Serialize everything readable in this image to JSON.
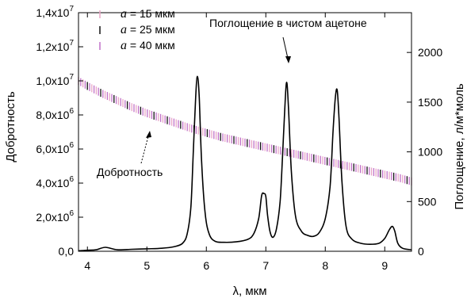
{
  "chart_data": {
    "type": "line",
    "xlabel": "λ, мкм",
    "ylabel_left": "Добротность",
    "ylabel_right": "Поглощение, л/м*моль",
    "xlim": [
      3.85,
      9.45
    ],
    "ylim_left": [
      0,
      14000000
    ],
    "ylim_right": [
      0,
      2400
    ],
    "x_ticks": [
      4,
      5,
      6,
      7,
      8,
      9
    ],
    "x_tick_labels": [
      "4",
      "5",
      "6",
      "7",
      "8",
      "9"
    ],
    "y_left_ticks": [
      0,
      2000000,
      4000000,
      6000000,
      8000000,
      10000000,
      12000000,
      14000000
    ],
    "y_left_tick_labels": [
      {
        "mantissa": "0,0",
        "exp": ""
      },
      {
        "mantissa": "2,0x10",
        "exp": "6"
      },
      {
        "mantissa": "4,0x10",
        "exp": "6"
      },
      {
        "mantissa": "6,0x10",
        "exp": "6"
      },
      {
        "mantissa": "8,0x10",
        "exp": "6"
      },
      {
        "mantissa": "1,0x10",
        "exp": "7"
      },
      {
        "mantissa": "1,2x10",
        "exp": "7"
      },
      {
        "mantissa": "1,4x10",
        "exp": "7"
      }
    ],
    "y_right_ticks": [
      0,
      500,
      1000,
      1500,
      2000
    ],
    "y_right_tick_labels": [
      "0",
      "500",
      "1000",
      "1500",
      "2000"
    ],
    "legend": {
      "placement": "top-left",
      "items": [
        {
          "symbol": "a",
          "text": " = 15 мкм",
          "color": "#e8a7c6"
        },
        {
          "symbol": "a",
          "text": " = 25 мкм",
          "color": "#111111"
        },
        {
          "symbol": "a",
          "text": " = 40 мкм",
          "color": "#c070c8"
        }
      ]
    },
    "quality_series": {
      "name": "Добротность",
      "axis": "left",
      "x": [
        3.85,
        4.0,
        4.25,
        4.5,
        4.75,
        5.0,
        5.25,
        5.5,
        5.75,
        6.0,
        6.25,
        6.5,
        6.75,
        7.0,
        7.25,
        7.5,
        7.75,
        8.0,
        8.25,
        8.5,
        8.75,
        9.0,
        9.25,
        9.45
      ],
      "y": [
        10000000,
        9700000,
        9250000,
        8850000,
        8450000,
        8100000,
        7800000,
        7500000,
        7200000,
        6950000,
        6700000,
        6500000,
        6300000,
        6100000,
        5900000,
        5700000,
        5500000,
        5300000,
        5100000,
        4900000,
        4700000,
        4500000,
        4300000,
        4100000
      ]
    },
    "absorption_series": {
      "name": "Поглощение в чистом ацетоне",
      "axis": "right",
      "x": [
        3.85,
        4.0,
        4.15,
        4.3,
        4.5,
        4.75,
        5.0,
        5.25,
        5.45,
        5.6,
        5.68,
        5.74,
        5.78,
        5.82,
        5.85,
        5.88,
        5.92,
        5.98,
        6.05,
        6.15,
        6.3,
        6.5,
        6.7,
        6.8,
        6.88,
        6.93,
        6.97,
        7.0,
        7.03,
        7.07,
        7.12,
        7.18,
        7.24,
        7.28,
        7.32,
        7.35,
        7.38,
        7.43,
        7.5,
        7.6,
        7.7,
        7.8,
        7.9,
        8.0,
        8.08,
        8.13,
        8.17,
        8.2,
        8.23,
        8.28,
        8.35,
        8.45,
        8.6,
        8.75,
        8.9,
        9.0,
        9.08,
        9.13,
        9.17,
        9.22,
        9.3,
        9.45
      ],
      "y": [
        5,
        10,
        15,
        40,
        15,
        20,
        25,
        30,
        45,
        80,
        180,
        450,
        1000,
        1550,
        1760,
        1550,
        900,
        380,
        170,
        100,
        90,
        95,
        120,
        180,
        330,
        560,
        580,
        550,
        360,
        200,
        140,
        230,
        500,
        950,
        1450,
        1700,
        1450,
        800,
        350,
        200,
        160,
        150,
        190,
        330,
        650,
        1200,
        1550,
        1620,
        1350,
        700,
        250,
        120,
        80,
        70,
        80,
        130,
        220,
        250,
        200,
        80,
        30,
        15
      ]
    },
    "annotations": [
      {
        "text": "Поглощение в чистом ацетоне",
        "target": "absorption_series",
        "target_x": 7.34
      },
      {
        "text": "Добротность",
        "target": "quality_series",
        "target_x": 5.98
      }
    ]
  }
}
